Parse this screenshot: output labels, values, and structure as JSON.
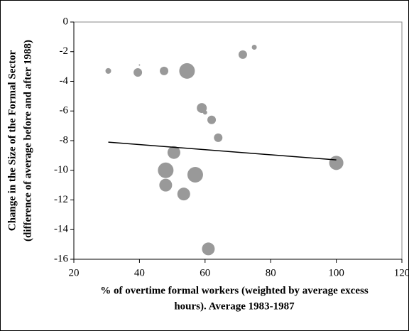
{
  "chart_data": {
    "type": "scatter",
    "x_label": [
      "% of overtime formal workers (weighted by average excess",
      "hours). Average 1983-1987"
    ],
    "y_label": [
      "Change in the Size of the Formal Sector",
      "(difference of average before and after 1988)"
    ],
    "xlim": [
      20,
      120
    ],
    "xticks": [
      20,
      40,
      60,
      80,
      100,
      120
    ],
    "ylim": [
      -16,
      0
    ],
    "yticks": [
      -16,
      -14,
      -12,
      -10,
      -8,
      -6,
      -4,
      -2,
      0
    ],
    "grid": false,
    "series": [
      {
        "type": "bubble",
        "color": "#999999",
        "x": [
          30.5,
          40,
          39.5,
          47.5,
          54.5,
          71.5,
          75,
          59,
          60,
          62,
          64,
          50.5,
          48,
          57,
          48,
          53.5,
          61,
          100
        ],
        "values": [
          -3.3,
          -2.9,
          -3.4,
          -3.3,
          -3.3,
          -2.2,
          -1.7,
          -5.8,
          -6.1,
          -6.6,
          -7.8,
          -8.8,
          -10.0,
          -10.3,
          -11.0,
          -11.6,
          -15.3,
          -9.5
        ],
        "sizes": [
          4,
          1,
          6,
          6,
          11,
          6,
          3.5,
          7,
          3,
          6,
          6,
          9,
          11,
          11,
          9,
          9,
          9,
          10
        ]
      },
      {
        "type": "line",
        "color": "#000000",
        "x": [
          30.5,
          100
        ],
        "values": [
          -8.1,
          -9.3
        ]
      }
    ]
  }
}
